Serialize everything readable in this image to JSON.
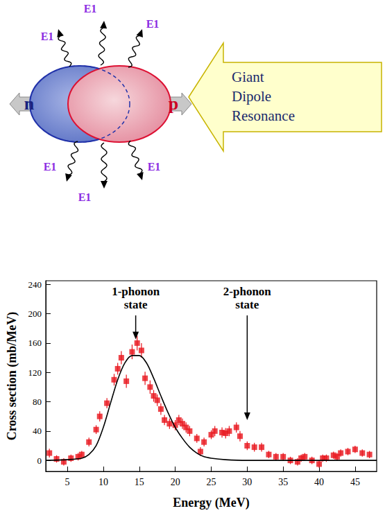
{
  "chart_data": {
    "type": "scatter",
    "x_label": "Energy (MeV)",
    "y_label": "Cross section (mb/MeV)",
    "xlim": [
      2,
      48
    ],
    "ylim": [
      -15,
      245
    ],
    "xticks": [
      5,
      10,
      15,
      20,
      25,
      30,
      35,
      40,
      45
    ],
    "yticks": [
      0,
      40,
      80,
      120,
      160,
      200,
      240
    ],
    "grid": false,
    "series": [
      {
        "type": "scatter",
        "marker": "square",
        "color": "#e8141c",
        "x": [
          2.5,
          3.5,
          4.5,
          5.5,
          6.5,
          7,
          8,
          9,
          9.5,
          10.5,
          11.5,
          12,
          12.5,
          13.2,
          14,
          14.7,
          15.3,
          15.8,
          16.5,
          17,
          17.5,
          18,
          18.5,
          19.2,
          20,
          20.5,
          21,
          21.5,
          22,
          23,
          23.5,
          24,
          25,
          25.5,
          26.5,
          27,
          27.5,
          28.5,
          29,
          30,
          31,
          32,
          33,
          34,
          35,
          36,
          37,
          37.5,
          38,
          39,
          40,
          40.5,
          41,
          42,
          42.5,
          43,
          44,
          45,
          46,
          47
        ],
        "values": [
          10,
          2,
          -2,
          3,
          5,
          8,
          25,
          42,
          60,
          78,
          110,
          125,
          140,
          108,
          148,
          160,
          150,
          112,
          100,
          88,
          82,
          70,
          55,
          50,
          48,
          55,
          50,
          45,
          40,
          30,
          12,
          25,
          35,
          40,
          38,
          37,
          40,
          45,
          33,
          20,
          18,
          18,
          8,
          5,
          5,
          0,
          -2,
          3,
          5,
          0,
          -5,
          3,
          3,
          7,
          5,
          10,
          12,
          15,
          10,
          8
        ],
        "errors": [
          6,
          5,
          5,
          5,
          5,
          5,
          6,
          6,
          7,
          7,
          8,
          8,
          9,
          9,
          10,
          10,
          10,
          9,
          9,
          8,
          8,
          8,
          7,
          7,
          7,
          7,
          7,
          7,
          7,
          6,
          6,
          6,
          6,
          7,
          7,
          7,
          7,
          7,
          7,
          6,
          6,
          6,
          5,
          5,
          5,
          5,
          5,
          5,
          5,
          5,
          5,
          5,
          5,
          5,
          5,
          5,
          5,
          5,
          5,
          5
        ]
      },
      {
        "type": "line",
        "line_style": "solid",
        "color": "#000000",
        "x": [
          2,
          5,
          7,
          8,
          9,
          10,
          11,
          12,
          13,
          14,
          15,
          16,
          17,
          18,
          19,
          20,
          21,
          22,
          23,
          24,
          25,
          27,
          30,
          35,
          40,
          48
        ],
        "values": [
          0,
          1,
          3,
          8,
          20,
          45,
          78,
          110,
          133,
          143,
          143,
          133,
          112,
          88,
          65,
          45,
          30,
          18,
          10,
          5,
          3,
          1,
          0,
          0,
          0,
          0
        ]
      }
    ],
    "annotations": [
      {
        "text": "1-phonon state",
        "x": 14.5,
        "y": 165
      },
      {
        "text": "2-phonon state",
        "x": 30,
        "y": 55
      }
    ]
  },
  "diagram": {
    "left_label": "n",
    "right_label": "p",
    "photon_labels": [
      "E1",
      "E1",
      "E1",
      "E1",
      "E1",
      "E1"
    ],
    "arrow_text": "Giant Dipole Resonance"
  }
}
